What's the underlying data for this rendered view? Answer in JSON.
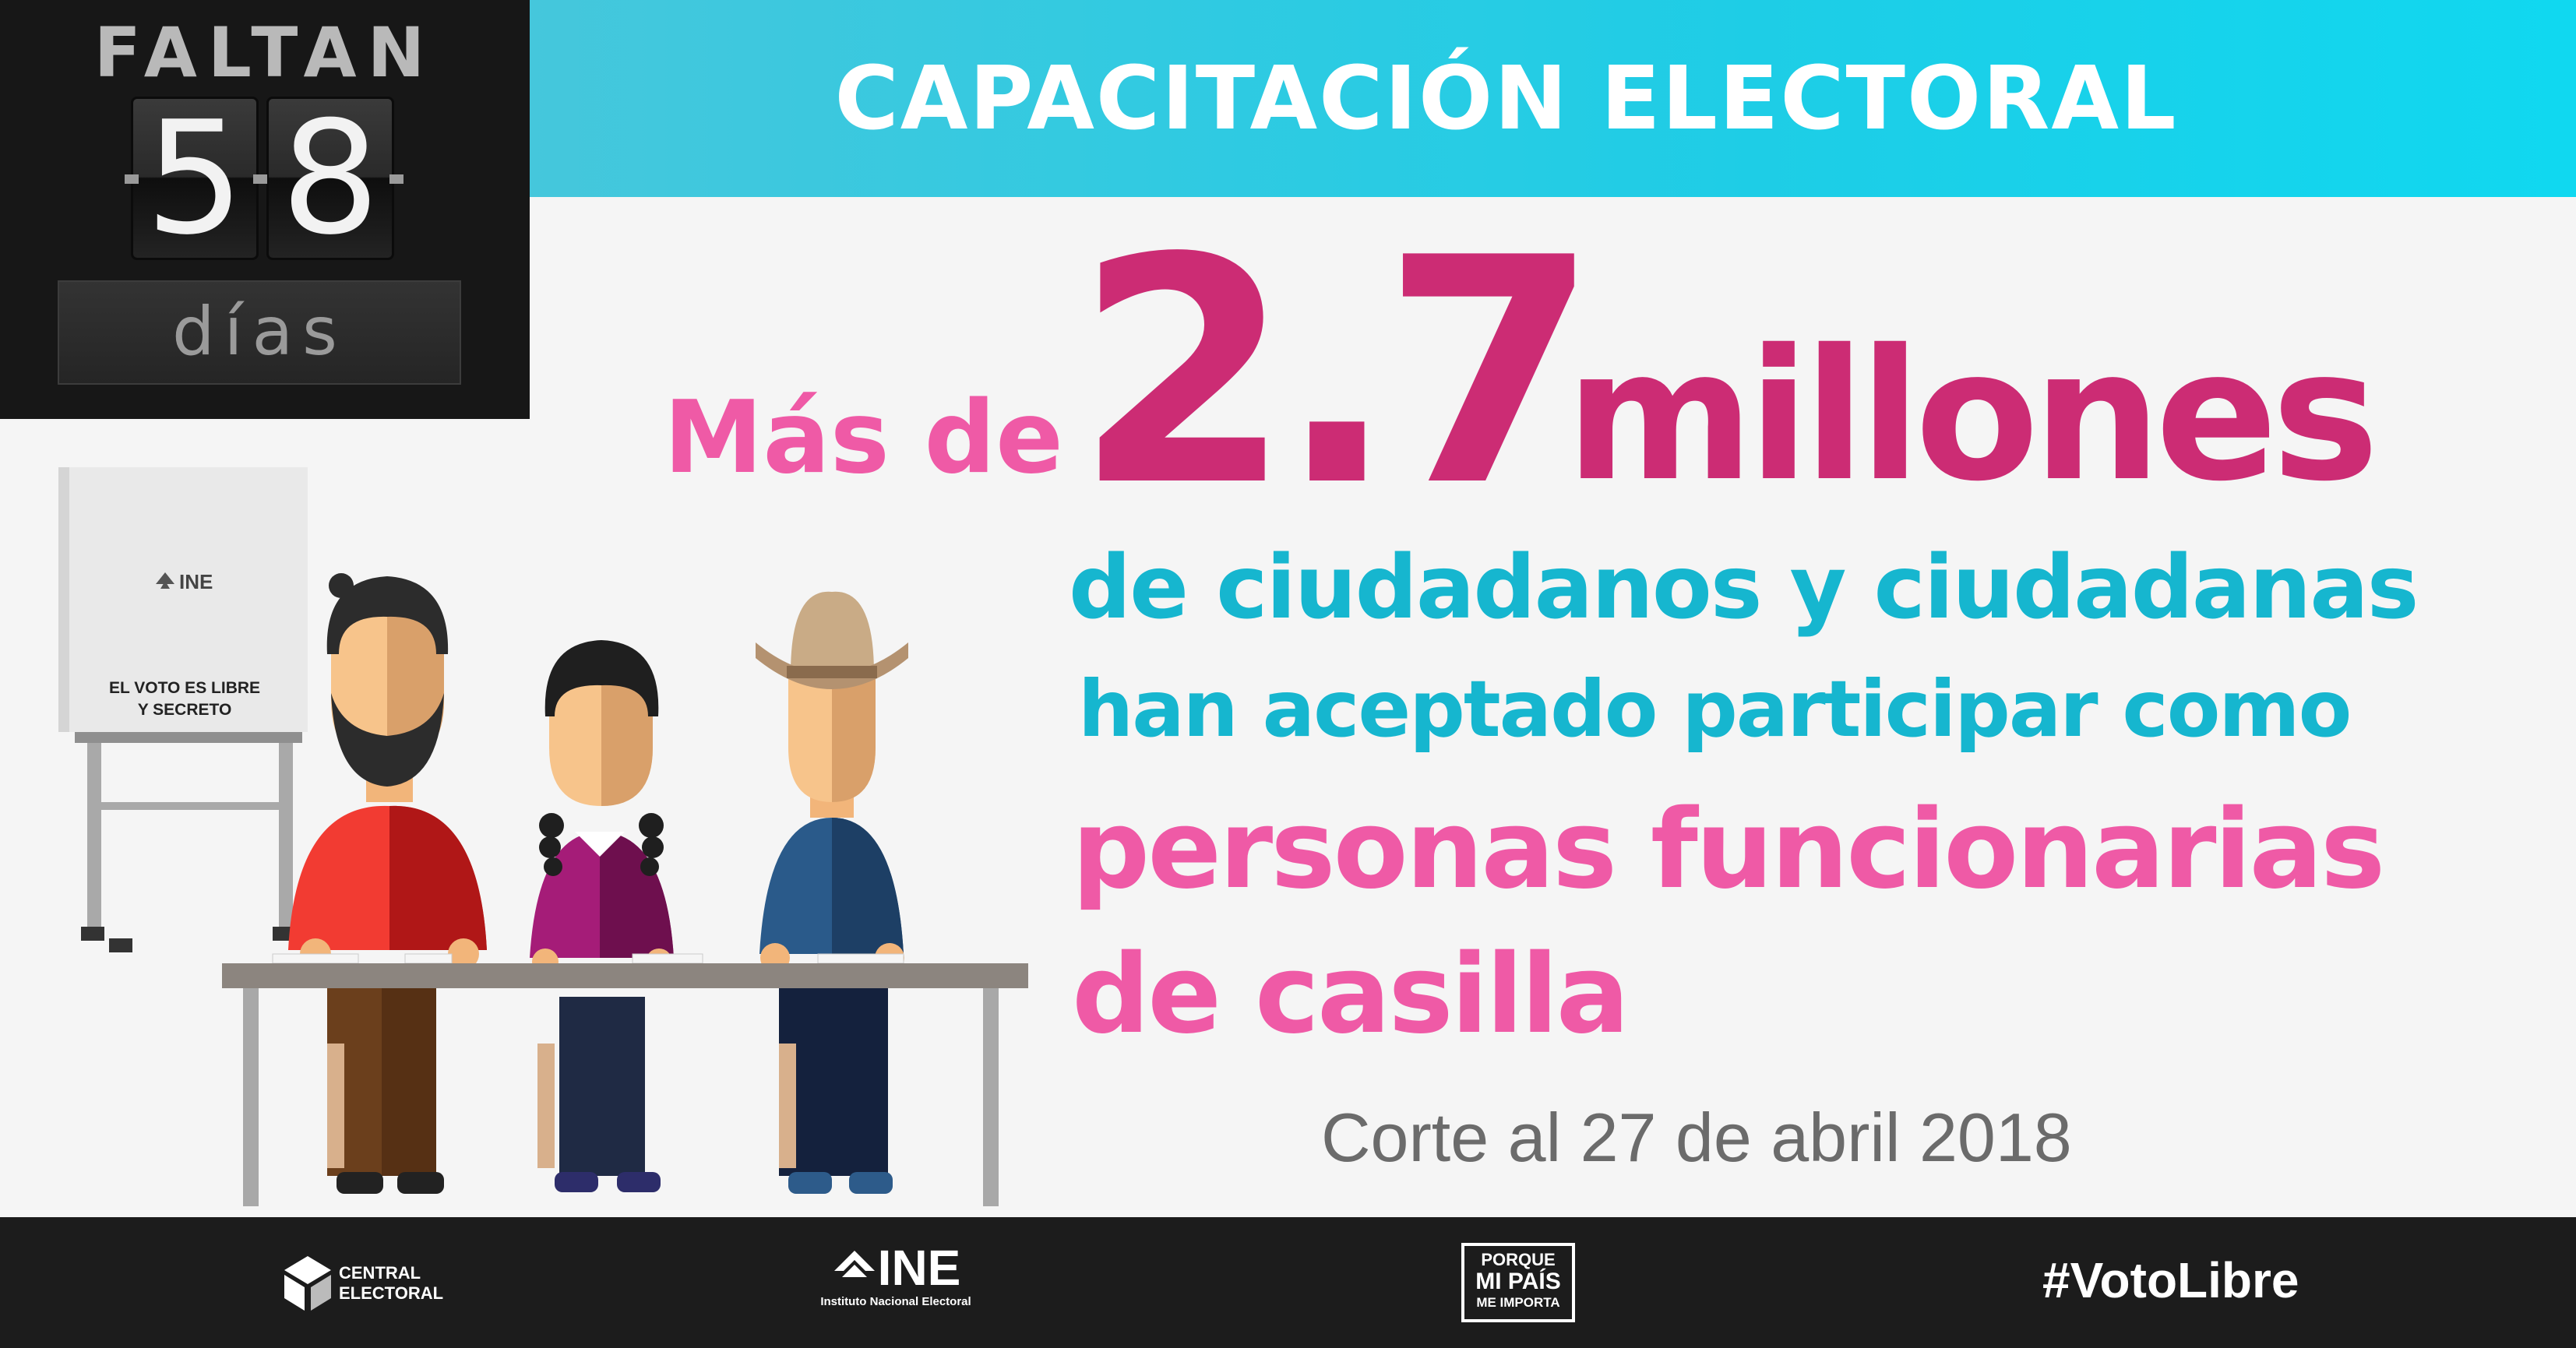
{
  "banner": {
    "title": "CAPACITACIÓN ELECTORAL"
  },
  "countdown": {
    "label": "FALTAN",
    "digits": [
      "5",
      "8"
    ],
    "unit": "días"
  },
  "headline": {
    "prefix": "Más de",
    "number": "2.7",
    "unit": "millones",
    "line1": "de ciudadanos y ciudadanas",
    "line2": "han aceptado participar como",
    "line3": "personas funcionarias",
    "line4": "de casilla",
    "cutoff": "Corte al 27 de abril 2018"
  },
  "illustration": {
    "booth_logo": "INE",
    "booth_text_1": "EL VOTO ES LIBRE",
    "booth_text_2": "Y SECRETO"
  },
  "footer": {
    "central_line1": "CENTRAL",
    "central_line2": "ELECTORAL",
    "ine_word": "INE",
    "ine_sub": "Instituto Nacional Electoral",
    "porque_l1": "PORQUE",
    "porque_l2": "MI PAÍS",
    "porque_l3": "ME IMPORTA",
    "hashtag": "#VotoLibre"
  },
  "colors": {
    "banner_cyan": "#1ecde6",
    "magenta": "#cc2c74",
    "pink": "#ef5aa6",
    "teal_text": "#16b6cf",
    "footer_bg": "#1c1c1c"
  }
}
